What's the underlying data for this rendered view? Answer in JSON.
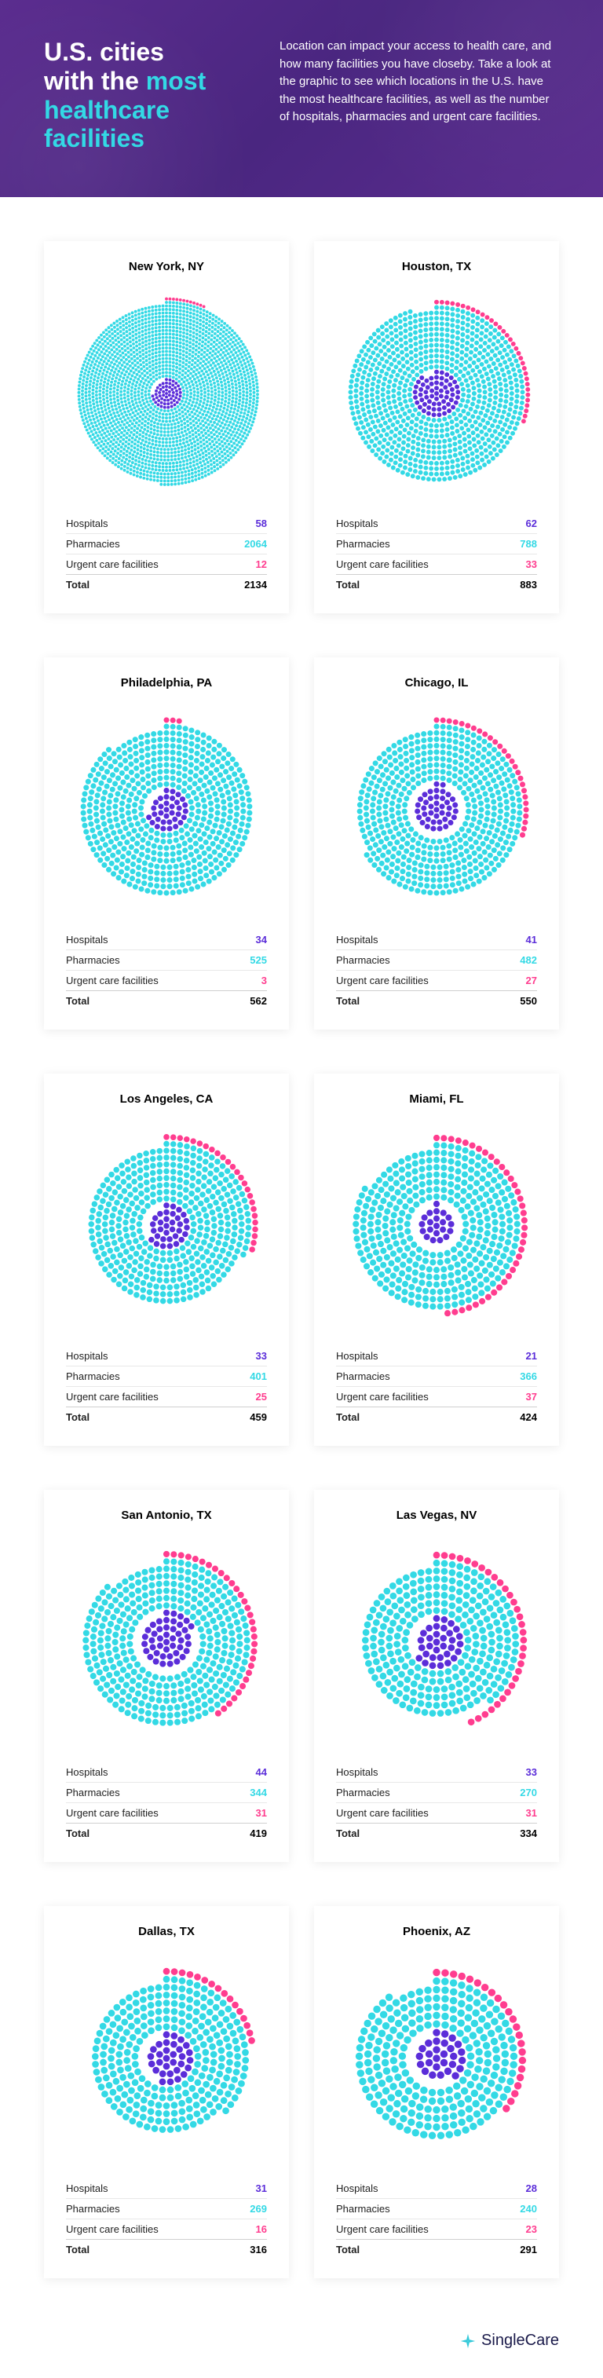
{
  "colors": {
    "header_bg": "#5b2d8f",
    "accent_cyan": "#33d9e5",
    "hospitals": "#5b2dd9",
    "pharmacies": "#33d9e5",
    "urgent": "#ff3d8f",
    "text": "#000000",
    "card_bg": "#ffffff",
    "divider": "#e8e8e8",
    "footer_logo": "#1a1a4a",
    "footer_icon": "#33c9d9"
  },
  "header": {
    "title_line1": "U.S. cities",
    "title_line2_pre": "with the ",
    "title_line2_accent": "most",
    "title_line3": "healthcare",
    "title_line4": "facilities",
    "description": "Location can impact your access to health care, and how many facilities you have closeby. Take a look at the graphic to see which locations in the U.S. have the most healthcare facilities, as well as the number of hospitals, pharmacies and urgent care facilities."
  },
  "labels": {
    "hospitals": "Hospitals",
    "pharmacies": "Pharmacies",
    "urgent": "Urgent care facilities",
    "total": "Total"
  },
  "viz": {
    "dot_radius": 3.2,
    "dot_spacing": 7.4
  },
  "cities": [
    {
      "name": "New York, NY",
      "hospitals": 58,
      "pharmacies": 2064,
      "urgent": 12,
      "total": 2134
    },
    {
      "name": "Houston, TX",
      "hospitals": 62,
      "pharmacies": 788,
      "urgent": 33,
      "total": 883
    },
    {
      "name": "Philadelphia, PA",
      "hospitals": 34,
      "pharmacies": 525,
      "urgent": 3,
      "total": 562
    },
    {
      "name": "Chicago, IL",
      "hospitals": 41,
      "pharmacies": 482,
      "urgent": 27,
      "total": 550
    },
    {
      "name": "Los Angeles, CA",
      "hospitals": 33,
      "pharmacies": 401,
      "urgent": 25,
      "total": 459
    },
    {
      "name": "Miami, FL",
      "hospitals": 21,
      "pharmacies": 366,
      "urgent": 37,
      "total": 424
    },
    {
      "name": "San Antonio, TX",
      "hospitals": 44,
      "pharmacies": 344,
      "urgent": 31,
      "total": 419
    },
    {
      "name": "Las Vegas, NV",
      "hospitals": 33,
      "pharmacies": 270,
      "urgent": 31,
      "total": 334
    },
    {
      "name": "Dallas, TX",
      "hospitals": 31,
      "pharmacies": 269,
      "urgent": 16,
      "total": 316
    },
    {
      "name": "Phoenix, AZ",
      "hospitals": 28,
      "pharmacies": 240,
      "urgent": 23,
      "total": 291
    }
  ],
  "footer": {
    "brand": "SingleCare"
  }
}
